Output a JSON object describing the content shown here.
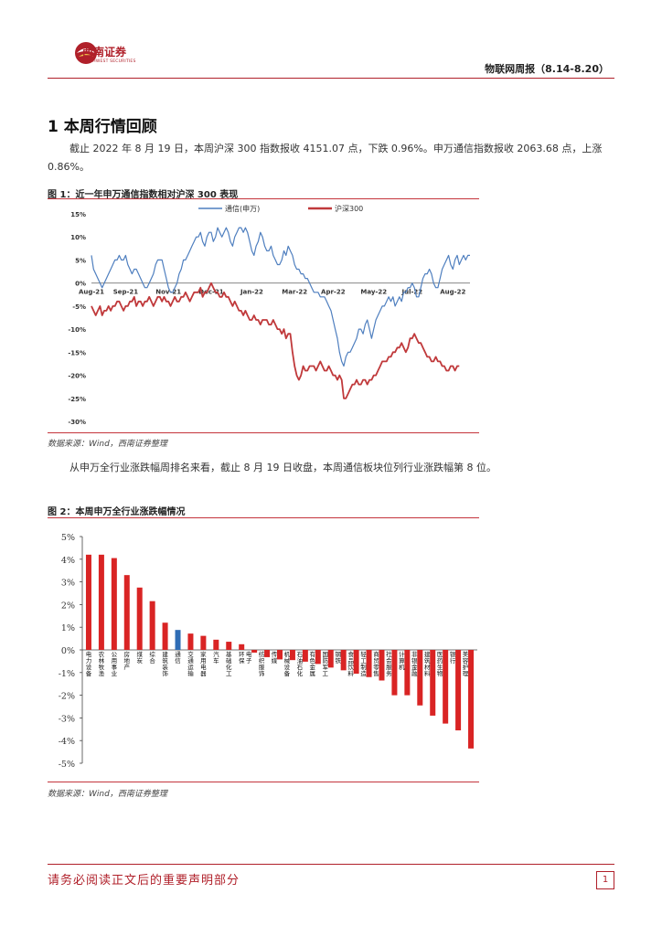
{
  "header": {
    "brand_name": "西南证券",
    "brand_sub": "SOUTHWEST SECURITIES",
    "report_title": "物联网周报（8.14-8.20）"
  },
  "section": {
    "title": "1 本周行情回顾"
  },
  "paragraphs": {
    "p1": "截止 2022 年 8 月 19 日，本周沪深 300 指数报收 4151.07 点，下跌 0.96%。申万通信指数报收 2063.68 点，上涨 0.86%。",
    "p2": "从申万全行业涨跌幅周排名来看，截止 8 月 19 日收盘，本周通信板块位列行业涨跌幅第 8 位。"
  },
  "figures": {
    "fig1_title": "图 1：近一年申万通信指数相对沪深 300 表现",
    "fig1_source": "数据来源：Wind，西南证券整理",
    "fig2_title": "图 2：本周申万全行业涨跌幅情况",
    "fig2_source": "数据来源：Wind，西南证券整理"
  },
  "footer": {
    "disclaimer": "请务必阅读正文后的重要声明部分",
    "page": "1"
  },
  "colors": {
    "brand": "#b0202a",
    "telecom": "#4f7fbf",
    "hs300": "#c0393b",
    "bar_red": "#d92424",
    "bar_blue": "#2f6db5"
  },
  "chart_data": [
    {
      "type": "line",
      "title": "近一年申万通信指数相对沪深 300 表现",
      "xlabel": "",
      "ylabel": "",
      "ylim": [
        -30,
        15
      ],
      "y_ticks": [
        "15%",
        "10%",
        "5%",
        "0%",
        "-5%",
        "-10%",
        "-15%",
        "-20%",
        "-25%",
        "-30%"
      ],
      "x_ticks": [
        "Aug-21",
        "Sep-21",
        "Nov-21",
        "Dec-21",
        "Jan-22",
        "Mar-22",
        "Apr-22",
        "May-22",
        "Jul-22",
        "Aug-22"
      ],
      "x_tick_pos": [
        0,
        16,
        36,
        56,
        75,
        95,
        113,
        132,
        150,
        169
      ],
      "legend_position": "top",
      "series": [
        {
          "name": "通信(申万)",
          "values": [
            6,
            3,
            2,
            1,
            0,
            -1,
            0,
            1,
            2,
            3,
            4,
            5,
            5,
            6,
            5,
            5,
            6,
            4,
            3,
            2,
            3,
            3,
            2,
            1,
            0,
            -1,
            -1,
            0,
            1,
            2,
            4,
            5,
            5,
            5,
            3,
            1,
            -1,
            -2,
            -2,
            -1,
            0,
            2,
            3,
            5,
            5,
            6,
            7,
            8,
            9,
            10,
            10,
            11,
            9,
            8,
            10,
            11,
            11,
            9,
            10,
            12,
            11,
            10,
            11,
            12,
            11,
            9,
            8,
            10,
            11,
            12,
            12,
            11,
            12,
            11,
            9,
            7,
            6,
            8,
            9,
            11,
            10,
            8,
            7,
            7,
            8,
            6,
            5,
            4,
            4,
            5,
            7,
            6,
            8,
            7,
            6,
            4,
            3,
            3,
            2,
            2,
            1,
            1,
            0,
            -1,
            -2,
            -2,
            -2,
            -3,
            -3,
            -3,
            -4,
            -5,
            -6,
            -8,
            -10,
            -12,
            -15,
            -17,
            -18,
            -16,
            -15,
            -15,
            -14,
            -13,
            -12,
            -10,
            -10,
            -11,
            -9,
            -8,
            -10,
            -12,
            -10,
            -8,
            -7,
            -6,
            -5,
            -5,
            -4,
            -3,
            -4,
            -3,
            -5,
            -4,
            -3,
            -4,
            -2,
            -2,
            -1,
            -1,
            0,
            -1,
            -3,
            -3,
            -1,
            1,
            2,
            2,
            3,
            2,
            0,
            -1,
            -1,
            1,
            3,
            4,
            5,
            6,
            4,
            3,
            5,
            6,
            4,
            5,
            6,
            5,
            6,
            6
          ],
          "color": "#4f7fbf"
        },
        {
          "name": "沪深300",
          "values": [
            -5,
            -6,
            -7,
            -6,
            -5,
            -7,
            -6,
            -6,
            -5,
            -6,
            -5,
            -5,
            -4,
            -4,
            -5,
            -6,
            -5,
            -5,
            -4,
            -4,
            -3,
            -5,
            -4,
            -4,
            -5,
            -4,
            -4,
            -3,
            -4,
            -5,
            -4,
            -3,
            -3,
            -4,
            -3,
            -4,
            -4,
            -5,
            -4,
            -3,
            -4,
            -4,
            -3,
            -3,
            -2,
            -3,
            -4,
            -3,
            -2,
            -2,
            -2,
            -1,
            -3,
            -2,
            -2,
            -1,
            0,
            -1,
            -2,
            -2,
            -3,
            -3,
            -2,
            -3,
            -3,
            -4,
            -5,
            -4,
            -5,
            -6,
            -6,
            -7,
            -6,
            -7,
            -8,
            -8,
            -7,
            -8,
            -8,
            -9,
            -8,
            -8,
            -8,
            -9,
            -9,
            -8,
            -9,
            -10,
            -10,
            -11,
            -10,
            -12,
            -11,
            -11,
            -15,
            -18,
            -20,
            -21,
            -20,
            -18,
            -19,
            -19,
            -18,
            -18,
            -18,
            -19,
            -18,
            -17,
            -18,
            -19,
            -19,
            -18,
            -19,
            -20,
            -20,
            -21,
            -20,
            -21,
            -25,
            -25,
            -24,
            -23,
            -22,
            -22,
            -21,
            -22,
            -22,
            -21,
            -21,
            -22,
            -21,
            -21,
            -20,
            -20,
            -19,
            -18,
            -17,
            -17,
            -17,
            -16,
            -16,
            -15,
            -15,
            -14,
            -14,
            -13,
            -14,
            -15,
            -14,
            -12,
            -12,
            -11,
            -12,
            -13,
            -13,
            -14,
            -15,
            -16,
            -16,
            -17,
            -17,
            -16,
            -17,
            -17,
            -18,
            -18,
            -19,
            -19,
            -18,
            -18,
            -19,
            -18,
            -18
          ],
          "color": "#c0393b"
        }
      ]
    },
    {
      "type": "bar",
      "title": "本周申万全行业涨跌幅情况",
      "xlabel": "",
      "ylabel": "",
      "ylim": [
        -5,
        5
      ],
      "y_ticks": [
        "5%",
        "4%",
        "3%",
        "2%",
        "1%",
        "0%",
        "-1%",
        "-2%",
        "-3%",
        "-4%",
        "-5%"
      ],
      "categories": [
        "电力设备",
        "农林牧渔",
        "公用事业",
        "房地产",
        "煤炭",
        "综合",
        "建筑装饰",
        "通信",
        "交通运输",
        "家用电器",
        "汽车",
        "基础化工",
        "环保",
        "电子",
        "纺织服饰",
        "传媒",
        "机械设备",
        "石油石化",
        "有色金属",
        "国防军工",
        "钢铁",
        "食品饮料",
        "轻工制造",
        "商贸零售",
        "社会服务",
        "计算机",
        "非银金融",
        "建筑材料",
        "医药生物",
        "银行",
        "美容护理"
      ],
      "values": [
        4.2,
        4.2,
        4.05,
        3.3,
        2.75,
        2.15,
        1.2,
        0.88,
        0.72,
        0.62,
        0.45,
        0.36,
        0.25,
        -0.12,
        -0.32,
        -0.42,
        -0.45,
        -0.52,
        -0.62,
        -0.78,
        -0.9,
        -1.05,
        -1.2,
        -1.35,
        -2.0,
        -2.0,
        -2.45,
        -2.9,
        -3.25,
        -3.55,
        -4.35
      ],
      "highlight": "通信"
    }
  ]
}
